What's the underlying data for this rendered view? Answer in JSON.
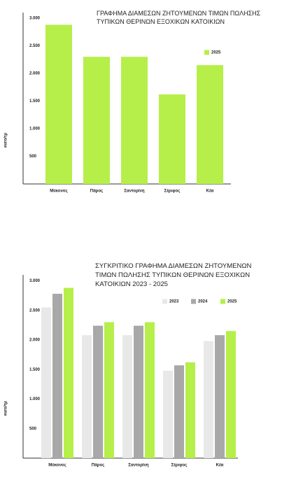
{
  "chart_data": [
    {
      "type": "bar",
      "title": "ΓΡΑΦΗΜΑ ΔΙΑΜΕΣΩΝ ΖΗΤΟΥΜΕΝΩΝ ΤΙΜΩΝ ΠΩΛΗΣΗΣ ΤΥΠΙΚΩΝ ΘΕΡΙΝΩΝ ΕΞΟΧΙΚΩΝ ΚΑΤΟΙΚΙΩΝ",
      "y_label": "euro/τμ",
      "categories": [
        "Μύκονος",
        "Πάρος",
        "Σαντορίνη",
        "Σέριφος",
        "Κέα"
      ],
      "series": [
        {
          "name": "2025",
          "color": "#b6ef4a",
          "values": [
            2880,
            2300,
            2300,
            1620,
            2150
          ]
        }
      ],
      "ylim": [
        0,
        3100
      ],
      "yticks": [
        500,
        {
          "value": 1000,
          "label": "1.000"
        },
        {
          "value": 1500,
          "label": "1.500"
        },
        {
          "value": 2000,
          "label": "2.000"
        },
        {
          "value": 2500,
          "label": "2.500"
        },
        {
          "value": 3000,
          "label": "3.000"
        }
      ],
      "grid": false
    },
    {
      "type": "bar",
      "title": "ΣΥΓΚΡΙΤΙΚΟ ΓΡΑΦΗΜΑ ΔΙΑΜΕΣΩΝ ΖΗΤΟΥΜΕΝΩΝ ΤΙΜΩΝ ΠΩΛΗΣΗΣ ΤΥΠΙΚΩΝ ΘΕΡΙΝΩΝ ΕΞΟΧΙΚΩΝ ΚΑΤΟΙΚΙΩΝ 2023 - 2025",
      "y_label": "euro/τμ",
      "categories": [
        "Μύκονος",
        "Πάρος",
        "Σαντορίνη",
        "Σέριφος",
        "Κέα"
      ],
      "series": [
        {
          "name": "2023",
          "color": "#e8e8e8",
          "values": [
            2550,
            2080,
            2080,
            1480,
            1980
          ]
        },
        {
          "name": "2024",
          "color": "#a8a8a8",
          "values": [
            2780,
            2240,
            2240,
            1570,
            2080
          ]
        },
        {
          "name": "2025",
          "color": "#b6ef4a",
          "values": [
            2880,
            2300,
            2300,
            1620,
            2150
          ]
        }
      ],
      "ylim": [
        0,
        3100
      ],
      "yticks": [
        500,
        {
          "value": 1000,
          "label": "1.000"
        },
        {
          "value": 1500,
          "label": "1.500"
        },
        {
          "value": 2000,
          "label": "2.000"
        },
        {
          "value": 2500,
          "label": "2.500"
        },
        {
          "value": 3000,
          "label": "3.000"
        }
      ],
      "grid": false
    }
  ]
}
